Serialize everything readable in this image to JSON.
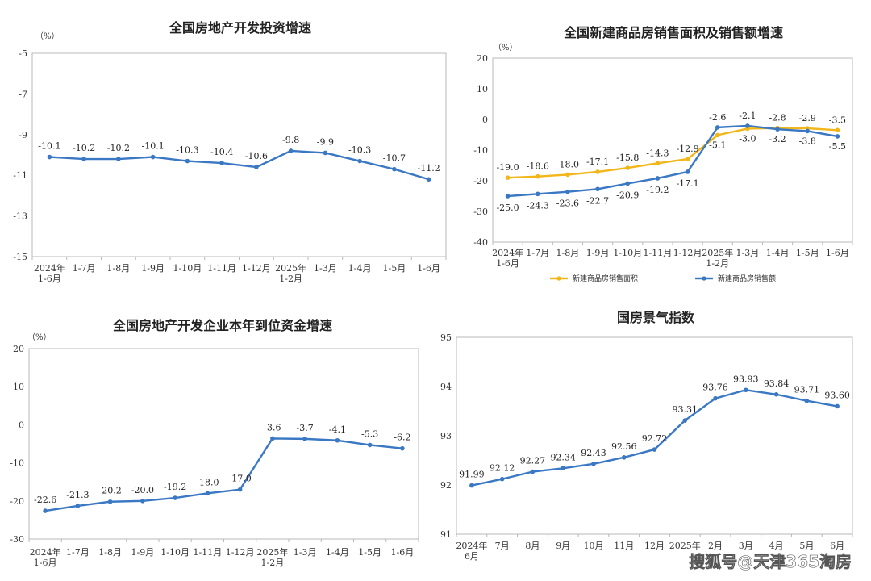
{
  "watermark": "搜狐号@天津365淘房",
  "chart_data": [
    {
      "type": "line",
      "title": "全国房地产开发投资增速",
      "unit": "（%）",
      "categories": [
        "2024年\n1-6月",
        "1-7月",
        "1-8月",
        "1-9月",
        "1-10月",
        "1-11月",
        "1-12月",
        "2025年\n1-2月",
        "1-3月",
        "1-4月",
        "1-5月",
        "1-6月"
      ],
      "series": [
        {
          "values": [
            -10.1,
            -10.2,
            -10.2,
            -10.1,
            -10.3,
            -10.4,
            -10.6,
            -9.8,
            -9.9,
            -10.3,
            -10.7,
            -11.2
          ],
          "color": "#3a78c4"
        }
      ],
      "ylim": [
        -15,
        -5
      ],
      "yticks": [
        -5,
        -7,
        -9,
        -11,
        -13,
        -15
      ],
      "grid": false
    },
    {
      "type": "line",
      "title": "全国新建商品房销售面积及销售额增速",
      "unit": "（%）",
      "categories": [
        "2024年\n1-6月",
        "1-7月",
        "1-8月",
        "1-9月",
        "1-10月",
        "1-11月",
        "1-12月",
        "2025年\n1-2月",
        "1-3月",
        "1-4月",
        "1-5月",
        "1-6月"
      ],
      "series": [
        {
          "name": "新建商品房销售面积",
          "values": [
            -19.0,
            -18.6,
            -18.0,
            -17.1,
            -15.8,
            -14.3,
            -12.9,
            -5.1,
            -3.0,
            -2.8,
            -2.9,
            -3.5
          ],
          "color": "#f2b619"
        },
        {
          "name": "新建商品房销售额",
          "values": [
            -25.0,
            -24.3,
            -23.6,
            -22.7,
            -20.9,
            -19.2,
            -17.1,
            -2.6,
            -2.1,
            -3.2,
            -3.8,
            -5.5
          ],
          "color": "#3a78c4"
        }
      ],
      "ylim": [
        -40,
        20
      ],
      "yticks": [
        20,
        10,
        0,
        -10,
        -20,
        -30,
        -40
      ],
      "legend": "bottom",
      "grid": false
    },
    {
      "type": "line",
      "title": "全国房地产开发企业本年到位资金增速",
      "unit": "（%）",
      "categories": [
        "2024年\n1-6月",
        "1-7月",
        "1-8月",
        "1-9月",
        "1-10月",
        "1-11月",
        "1-12月",
        "2025年\n1-2月",
        "1-3月",
        "1-4月",
        "1-5月",
        "1-6月"
      ],
      "series": [
        {
          "values": [
            -22.6,
            -21.3,
            -20.2,
            -20.0,
            -19.2,
            -18.0,
            -17.0,
            -3.6,
            -3.7,
            -4.1,
            -5.3,
            -6.2
          ],
          "color": "#3a78c4"
        }
      ],
      "ylim": [
        -30,
        20
      ],
      "yticks": [
        20,
        10,
        0,
        -10,
        -20,
        -30
      ],
      "grid": false
    },
    {
      "type": "line",
      "title": "国房景气指数",
      "categories": [
        "2024年\n6月",
        "7月",
        "8月",
        "9月",
        "10月",
        "11月",
        "12月",
        "2025年",
        "2月",
        "3月",
        "4月",
        "5月",
        "6月"
      ],
      "series": [
        {
          "values": [
            91.99,
            92.12,
            92.27,
            92.34,
            92.43,
            92.56,
            92.72,
            93.31,
            93.76,
            93.93,
            93.84,
            93.71,
            93.6
          ],
          "color": "#3a78c4"
        }
      ],
      "ylim": [
        91,
        95
      ],
      "yticks": [
        95,
        94,
        93,
        92,
        91
      ],
      "grid": false
    }
  ]
}
